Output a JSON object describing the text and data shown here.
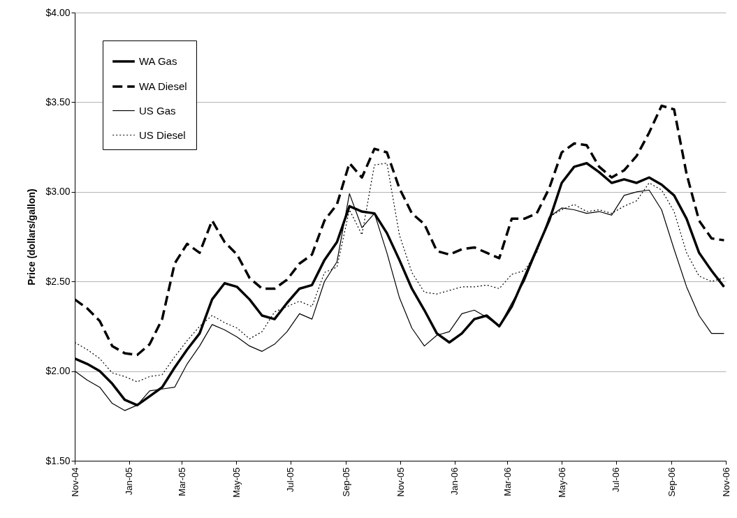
{
  "chart_data": {
    "type": "line",
    "ylabel": "Price (dollars/gallon)",
    "x": [
      "2004-11-01",
      "2004-11-15",
      "2004-11-29",
      "2004-12-13",
      "2004-12-27",
      "2005-01-10",
      "2005-01-24",
      "2005-02-07",
      "2005-02-21",
      "2005-03-07",
      "2005-03-21",
      "2005-04-04",
      "2005-04-18",
      "2005-05-02",
      "2005-05-16",
      "2005-05-30",
      "2005-06-13",
      "2005-06-27",
      "2005-07-11",
      "2005-07-25",
      "2005-08-08",
      "2005-08-22",
      "2005-09-05",
      "2005-09-19",
      "2005-10-03",
      "2005-10-17",
      "2005-10-31",
      "2005-11-14",
      "2005-11-28",
      "2005-12-12",
      "2005-12-26",
      "2006-01-09",
      "2006-01-23",
      "2006-02-06",
      "2006-02-20",
      "2006-03-06",
      "2006-03-20",
      "2006-04-03",
      "2006-04-17",
      "2006-05-01",
      "2006-05-15",
      "2006-05-29",
      "2006-06-12",
      "2006-06-26",
      "2006-07-10",
      "2006-07-24",
      "2006-08-07",
      "2006-08-21",
      "2006-09-04",
      "2006-09-18",
      "2006-10-02",
      "2006-10-16",
      "2006-10-30"
    ],
    "series": [
      {
        "name": "WA Gas",
        "color": "#000000",
        "line_style": "solid",
        "values": [
          2.07,
          2.04,
          2.0,
          1.93,
          1.84,
          1.81,
          1.86,
          1.91,
          2.02,
          2.12,
          2.21,
          2.4,
          2.49,
          2.47,
          2.4,
          2.31,
          2.29,
          2.38,
          2.46,
          2.48,
          2.62,
          2.72,
          2.92,
          2.89,
          2.88,
          2.77,
          2.62,
          2.46,
          2.34,
          2.21,
          2.16,
          2.21,
          2.29,
          2.31,
          2.25,
          2.36,
          2.52,
          2.68,
          2.84,
          3.05,
          3.14,
          3.16,
          3.11,
          3.05,
          3.07,
          3.05,
          3.08,
          3.04,
          2.98,
          2.85,
          2.66,
          2.56,
          2.47
        ]
      },
      {
        "name": "WA Diesel",
        "color": "#000000",
        "line_style": "dashed",
        "values": [
          2.4,
          2.35,
          2.28,
          2.14,
          2.1,
          2.09,
          2.15,
          2.29,
          2.6,
          2.71,
          2.66,
          2.84,
          2.72,
          2.65,
          2.52,
          2.46,
          2.46,
          2.51,
          2.6,
          2.65,
          2.84,
          2.93,
          3.16,
          3.08,
          3.24,
          3.22,
          3.02,
          2.88,
          2.82,
          2.67,
          2.65,
          2.68,
          2.69,
          2.66,
          2.63,
          2.85,
          2.85,
          2.88,
          3.02,
          3.22,
          3.27,
          3.26,
          3.14,
          3.08,
          3.12,
          3.2,
          3.33,
          3.48,
          3.46,
          3.1,
          2.84,
          2.74,
          2.73
        ]
      },
      {
        "name": "US Gas",
        "color": "#000000",
        "line_style": "solid",
        "values": [
          2.0,
          1.95,
          1.91,
          1.82,
          1.78,
          1.81,
          1.89,
          1.9,
          1.91,
          2.04,
          2.14,
          2.26,
          2.23,
          2.19,
          2.14,
          2.11,
          2.15,
          2.22,
          2.32,
          2.29,
          2.5,
          2.61,
          2.99,
          2.8,
          2.88,
          2.66,
          2.41,
          2.24,
          2.14,
          2.2,
          2.22,
          2.32,
          2.34,
          2.3,
          2.25,
          2.38,
          2.5,
          2.67,
          2.86,
          2.91,
          2.9,
          2.88,
          2.89,
          2.87,
          2.98,
          3.0,
          3.01,
          2.9,
          2.68,
          2.47,
          2.31,
          2.21,
          2.21
        ]
      },
      {
        "name": "US Diesel",
        "color": "#000000",
        "line_style": "dotted",
        "values": [
          2.16,
          2.12,
          2.07,
          1.99,
          1.97,
          1.94,
          1.97,
          1.98,
          2.08,
          2.17,
          2.25,
          2.31,
          2.27,
          2.24,
          2.18,
          2.22,
          2.33,
          2.36,
          2.39,
          2.36,
          2.55,
          2.58,
          2.9,
          2.76,
          3.15,
          3.16,
          2.76,
          2.55,
          2.44,
          2.43,
          2.45,
          2.47,
          2.47,
          2.48,
          2.46,
          2.54,
          2.56,
          2.66,
          2.86,
          2.9,
          2.93,
          2.89,
          2.9,
          2.88,
          2.92,
          2.95,
          3.05,
          3.01,
          2.89,
          2.66,
          2.53,
          2.5,
          2.52
        ]
      }
    ],
    "xlim": [
      "2004-11-01",
      "2006-11-01"
    ],
    "xticks": [
      {
        "value": "2004-11-01",
        "label": "Nov-04"
      },
      {
        "value": "2005-01-01",
        "label": "Jan-05"
      },
      {
        "value": "2005-03-01",
        "label": "Mar-05"
      },
      {
        "value": "2005-05-01",
        "label": "May-05"
      },
      {
        "value": "2005-07-01",
        "label": "Jul-05"
      },
      {
        "value": "2005-09-01",
        "label": "Sep-05"
      },
      {
        "value": "2005-11-01",
        "label": "Nov-05"
      },
      {
        "value": "2006-01-01",
        "label": "Jan-06"
      },
      {
        "value": "2006-03-01",
        "label": "Mar-06"
      },
      {
        "value": "2006-05-01",
        "label": "May-06"
      },
      {
        "value": "2006-07-01",
        "label": "Jul-06"
      },
      {
        "value": "2006-09-01",
        "label": "Sep-06"
      },
      {
        "value": "2006-11-01",
        "label": "Nov-06"
      }
    ],
    "ylim": [
      1.5,
      4.0
    ],
    "yticks": [
      {
        "value": 1.5,
        "label": "$1.50"
      },
      {
        "value": 2.0,
        "label": "$2.00"
      },
      {
        "value": 2.5,
        "label": "$2.50"
      },
      {
        "value": 3.0,
        "label": "$3.00"
      },
      {
        "value": 3.5,
        "label": "$3.50"
      },
      {
        "value": 4.0,
        "label": "$4.00"
      }
    ],
    "grid": "y",
    "legend": "top left",
    "marker": "none"
  }
}
